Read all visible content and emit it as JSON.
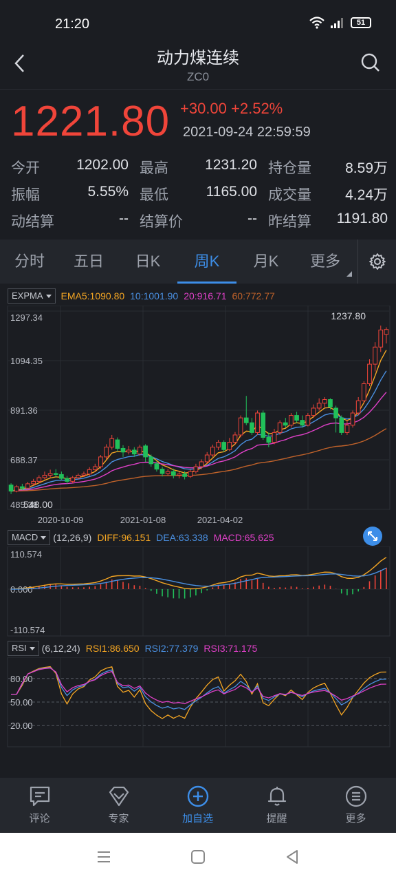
{
  "status": {
    "time": "21:20",
    "battery": "51"
  },
  "header": {
    "title": "动力煤连续",
    "code": "ZC0"
  },
  "quote": {
    "price": "1221.80",
    "change": "+30.00 +2.52%",
    "datetime": "2021-09-24 22:59:59"
  },
  "stats": [
    [
      {
        "label": "今开",
        "value": "1202.00"
      },
      {
        "label": "最高",
        "value": "1231.20"
      },
      {
        "label": "持仓量",
        "value": "8.59万"
      }
    ],
    [
      {
        "label": "振幅",
        "value": "5.55%"
      },
      {
        "label": "最低",
        "value": "1165.00"
      },
      {
        "label": "成交量",
        "value": "4.24万"
      }
    ],
    [
      {
        "label": "动结算",
        "value": "--"
      },
      {
        "label": "结算价",
        "value": "--"
      },
      {
        "label": "昨结算",
        "value": "1191.80"
      }
    ]
  ],
  "tabs": [
    "分时",
    "五日",
    "日K",
    "周K",
    "月K",
    "更多"
  ],
  "active_tab": "周K",
  "main_indicator": {
    "name": "EXPMA",
    "ema5": "EMA5:1090.80",
    "ema10": "10:1001.90",
    "ema20": "20:916.71",
    "ema60": "60:772.77",
    "y_labels": [
      "1297.34",
      "1094.35",
      "891.36",
      "688.37",
      "485.38"
    ],
    "low_label": "548.00",
    "high_label": "1237.80",
    "x_labels": [
      "2020-10-09",
      "2021-01-08",
      "2021-04-02"
    ]
  },
  "macd": {
    "name": "MACD",
    "params": "(12,26,9)",
    "diff": "DIFF:96.151",
    "dea": "DEA:63.338",
    "macd": "MACD:65.625",
    "y_labels": [
      "110.574",
      "0.000",
      "-110.574"
    ]
  },
  "rsi": {
    "name": "RSI",
    "params": "(6,12,24)",
    "rsi1": "RSI1:86.650",
    "rsi2": "RSI2:77.379",
    "rsi3": "RSI3:71.175",
    "y_labels": [
      "80.00",
      "50.00",
      "20.00"
    ]
  },
  "colors": {
    "up": "#f0453a",
    "down": "#21c05a",
    "ema5": "#f5a623",
    "ema10": "#4a90e2",
    "ema20": "#e040c8",
    "ema60": "#c0622a",
    "accent": "#3d8ee8"
  },
  "bottom_nav": [
    {
      "label": "评论",
      "icon": "comment-icon"
    },
    {
      "label": "专家",
      "icon": "diamond-icon"
    },
    {
      "label": "加自选",
      "icon": "add-circle-icon"
    },
    {
      "label": "提醒",
      "icon": "bell-icon"
    },
    {
      "label": "更多",
      "icon": "more-icon"
    }
  ],
  "chart_data": {
    "type": "candlestick",
    "period": "weekly",
    "ylim": [
      485.38,
      1297.34
    ],
    "candles": [
      {
        "o": 585,
        "c": 560,
        "h": 592,
        "l": 548
      },
      {
        "o": 560,
        "c": 578,
        "h": 585,
        "l": 555
      },
      {
        "o": 578,
        "c": 572,
        "h": 590,
        "l": 565
      },
      {
        "o": 572,
        "c": 590,
        "h": 598,
        "l": 566
      },
      {
        "o": 590,
        "c": 600,
        "h": 610,
        "l": 582
      },
      {
        "o": 600,
        "c": 615,
        "h": 625,
        "l": 592
      },
      {
        "o": 615,
        "c": 625,
        "h": 640,
        "l": 608
      },
      {
        "o": 625,
        "c": 632,
        "h": 648,
        "l": 615
      },
      {
        "o": 632,
        "c": 628,
        "h": 650,
        "l": 618
      },
      {
        "o": 628,
        "c": 612,
        "h": 640,
        "l": 605
      },
      {
        "o": 612,
        "c": 600,
        "h": 622,
        "l": 590
      },
      {
        "o": 600,
        "c": 615,
        "h": 622,
        "l": 592
      },
      {
        "o": 615,
        "c": 625,
        "h": 632,
        "l": 608
      },
      {
        "o": 625,
        "c": 630,
        "h": 640,
        "l": 618
      },
      {
        "o": 630,
        "c": 648,
        "h": 658,
        "l": 622
      },
      {
        "o": 648,
        "c": 660,
        "h": 672,
        "l": 640
      },
      {
        "o": 660,
        "c": 700,
        "h": 708,
        "l": 652
      },
      {
        "o": 700,
        "c": 740,
        "h": 752,
        "l": 690
      },
      {
        "o": 740,
        "c": 775,
        "h": 790,
        "l": 730
      },
      {
        "o": 770,
        "c": 735,
        "h": 780,
        "l": 722
      },
      {
        "o": 735,
        "c": 720,
        "h": 748,
        "l": 700
      },
      {
        "o": 720,
        "c": 728,
        "h": 745,
        "l": 710
      },
      {
        "o": 728,
        "c": 712,
        "h": 740,
        "l": 700
      },
      {
        "o": 712,
        "c": 740,
        "h": 750,
        "l": 705
      },
      {
        "o": 745,
        "c": 700,
        "h": 752,
        "l": 680
      },
      {
        "o": 700,
        "c": 672,
        "h": 710,
        "l": 660
      },
      {
        "o": 672,
        "c": 650,
        "h": 682,
        "l": 640
      },
      {
        "o": 650,
        "c": 632,
        "h": 660,
        "l": 620
      },
      {
        "o": 632,
        "c": 640,
        "h": 650,
        "l": 622
      },
      {
        "o": 640,
        "c": 625,
        "h": 652,
        "l": 612
      },
      {
        "o": 625,
        "c": 630,
        "h": 640,
        "l": 612
      },
      {
        "o": 630,
        "c": 620,
        "h": 642,
        "l": 608
      },
      {
        "o": 620,
        "c": 640,
        "h": 648,
        "l": 614
      },
      {
        "o": 640,
        "c": 660,
        "h": 672,
        "l": 632
      },
      {
        "o": 660,
        "c": 680,
        "h": 690,
        "l": 650
      },
      {
        "o": 680,
        "c": 708,
        "h": 720,
        "l": 672
      },
      {
        "o": 708,
        "c": 740,
        "h": 750,
        "l": 700
      },
      {
        "o": 740,
        "c": 760,
        "h": 770,
        "l": 728
      },
      {
        "o": 760,
        "c": 730,
        "h": 768,
        "l": 720
      },
      {
        "o": 730,
        "c": 760,
        "h": 778,
        "l": 724
      },
      {
        "o": 760,
        "c": 790,
        "h": 802,
        "l": 752
      },
      {
        "o": 790,
        "c": 860,
        "h": 870,
        "l": 780
      },
      {
        "o": 860,
        "c": 840,
        "h": 950,
        "l": 830
      },
      {
        "o": 840,
        "c": 800,
        "h": 860,
        "l": 790
      },
      {
        "o": 800,
        "c": 880,
        "h": 890,
        "l": 790
      },
      {
        "o": 880,
        "c": 780,
        "h": 890,
        "l": 770
      },
      {
        "o": 780,
        "c": 760,
        "h": 800,
        "l": 740
      },
      {
        "o": 760,
        "c": 800,
        "h": 815,
        "l": 752
      },
      {
        "o": 800,
        "c": 840,
        "h": 850,
        "l": 790
      },
      {
        "o": 840,
        "c": 830,
        "h": 860,
        "l": 820
      },
      {
        "o": 830,
        "c": 870,
        "h": 880,
        "l": 820
      },
      {
        "o": 870,
        "c": 850,
        "h": 885,
        "l": 840
      },
      {
        "o": 850,
        "c": 830,
        "h": 870,
        "l": 820
      },
      {
        "o": 830,
        "c": 870,
        "h": 880,
        "l": 825
      },
      {
        "o": 870,
        "c": 900,
        "h": 915,
        "l": 860
      },
      {
        "o": 900,
        "c": 920,
        "h": 940,
        "l": 890
      },
      {
        "o": 920,
        "c": 935,
        "h": 945,
        "l": 905
      },
      {
        "o": 935,
        "c": 905,
        "h": 940,
        "l": 895
      },
      {
        "o": 900,
        "c": 860,
        "h": 910,
        "l": 800
      },
      {
        "o": 860,
        "c": 800,
        "h": 870,
        "l": 790
      },
      {
        "o": 800,
        "c": 830,
        "h": 850,
        "l": 790
      },
      {
        "o": 830,
        "c": 880,
        "h": 890,
        "l": 820
      },
      {
        "o": 880,
        "c": 930,
        "h": 945,
        "l": 870
      },
      {
        "o": 930,
        "c": 1000,
        "h": 1010,
        "l": 920
      },
      {
        "o": 1000,
        "c": 1080,
        "h": 1100,
        "l": 990
      },
      {
        "o": 1080,
        "c": 1150,
        "h": 1170,
        "l": 1050
      },
      {
        "o": 1150,
        "c": 1220,
        "h": 1238,
        "l": 1130
      },
      {
        "o": 1202,
        "c": 1222,
        "h": 1231,
        "l": 1165
      }
    ]
  }
}
